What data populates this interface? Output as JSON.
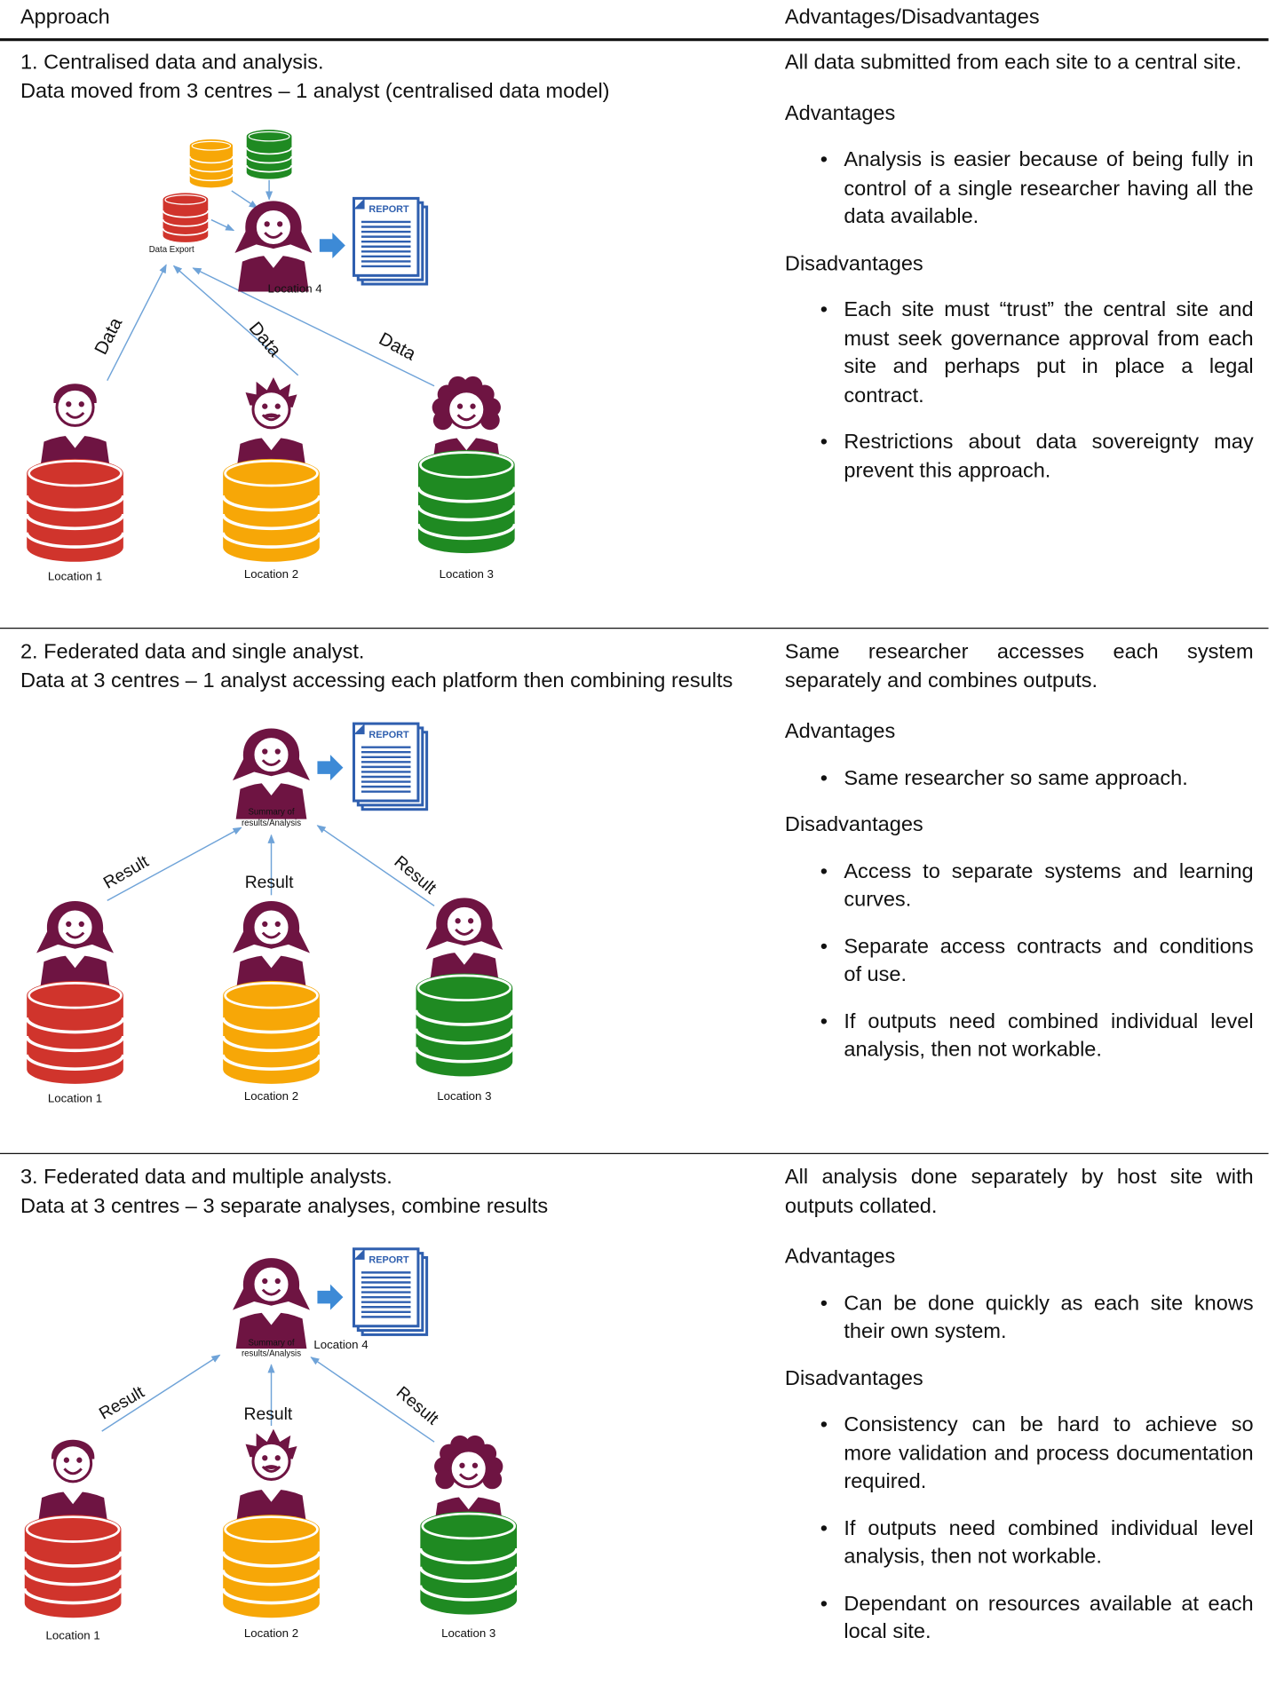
{
  "header": {
    "approach": "Approach",
    "advantages": "Advantages/Disadvantages"
  },
  "rows": [
    {
      "title": "1. Centralised data and analysis.",
      "subtitle": "Data moved from 3 centres – 1 analyst (centralised data model)",
      "diagram": {
        "locations": [
          "Location 1",
          "Location 2",
          "Location 3"
        ],
        "hub_label": [
          "Data Export"
        ],
        "hub_location": "Location 4",
        "arrow_labels": [
          "Data",
          "Data",
          "Data"
        ],
        "report": "REPORT"
      },
      "summary": "All data submitted from each site to a central site.",
      "advantages_heading": "Advantages",
      "advantages": [
        "Analysis is easier because of being fully in control of a single researcher having all the data available."
      ],
      "disadvantages_heading": "Disadvantages",
      "disadvantages": [
        "Each site must “trust” the central site and must seek governance approval from each site and perhaps put in place a legal contract.",
        "Restrictions about data sovereignty may prevent this approach."
      ]
    },
    {
      "title": "2. Federated data and single analyst.",
      "subtitle": "Data at 3 centres – 1 analyst accessing each platform then combining results",
      "diagram": {
        "locations": [
          "Location 1",
          "Location 2",
          "Location 3"
        ],
        "hub_label": [
          "Summary of",
          "results/Analysis"
        ],
        "arrow_labels": [
          "Result",
          "Result",
          "Result"
        ],
        "report": "REPORT"
      },
      "summary": "Same researcher accesses each system separately and combines outputs.",
      "advantages_heading": "Advantages",
      "advantages": [
        "Same researcher so same approach."
      ],
      "disadvantages_heading": "Disadvantages",
      "disadvantages": [
        "Access to separate systems and learning curves.",
        "Separate access contracts and conditions of use.",
        "If outputs need combined individual level analysis, then not workable."
      ]
    },
    {
      "title": "3. Federated data and multiple analysts.",
      "subtitle": "Data at 3 centres – 3 separate analyses, combine results",
      "diagram": {
        "locations": [
          "Location 1",
          "Location 2",
          "Location 3"
        ],
        "hub_label": [
          "Summary of",
          "results/Analysis"
        ],
        "hub_location": "Location 4",
        "arrow_labels": [
          "Result",
          "Result",
          "Result"
        ],
        "report": "REPORT"
      },
      "summary": "All analysis done separately by host site with outputs collated.",
      "advantages_heading": "Advantages",
      "advantages": [
        "Can be done quickly as each site knows their own system."
      ],
      "disadvantages_heading": "Disadvantages",
      "disadvantages": [
        "Consistency can be hard to achieve so more validation and process documentation required.",
        "If outputs need combined individual level analysis, then not workable.",
        "Dependant on resources available at each local site."
      ]
    }
  ]
}
